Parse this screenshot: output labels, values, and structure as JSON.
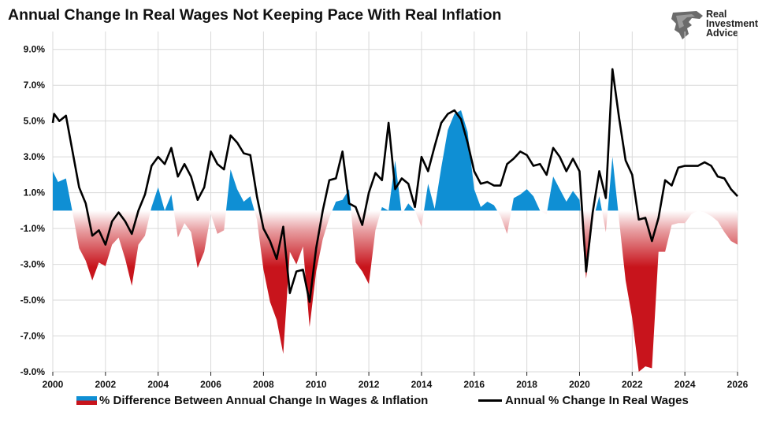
{
  "title": "Annual Change In Real Wages Not Keeping Pace With Real Inflation",
  "logo": {
    "lines": [
      "Real",
      "Investment",
      "Advice"
    ],
    "icon": "eagle-head-logo-icon"
  },
  "colors": {
    "positive_fill": "#0f8fd4",
    "negative_fill": "#c8141c",
    "line": "#000000",
    "grid": "#d9d9d9"
  },
  "legend": {
    "area_label": "% Difference Between Annual Change In Wages & Inflation",
    "line_label": "Annual % Change In Real Wages"
  },
  "chart_data": {
    "type": "area",
    "title": "Annual Change In Real Wages Not Keeping Pace With Real Inflation",
    "xlabel": "",
    "ylabel": "",
    "xlim": [
      2000,
      2026
    ],
    "ylim": [
      -9,
      10
    ],
    "grid": true,
    "legend_position": "bottom",
    "yticks": [
      "9.0%",
      "7.0%",
      "5.0%",
      "3.0%",
      "1.0%",
      "-1.0%",
      "-3.0%",
      "-5.0%",
      "-7.0%",
      "-9.0%"
    ],
    "ytick_values": [
      9,
      7,
      5,
      3,
      1,
      -1,
      -3,
      -5,
      -7,
      -9
    ],
    "xticks": [
      "2000",
      "2002",
      "2004",
      "2006",
      "2008",
      "2010",
      "2012",
      "2014",
      "2016",
      "2018",
      "2020",
      "2022",
      "2024",
      "2026"
    ],
    "xtick_values": [
      2000,
      2002,
      2004,
      2006,
      2008,
      2010,
      2012,
      2014,
      2016,
      2018,
      2020,
      2022,
      2024,
      2026
    ],
    "series": [
      {
        "name": "% Difference Between Annual Change In Wages & Inflation",
        "kind": "area",
        "x": [
          2000.0,
          2000.2,
          2000.5,
          2000.75,
          2001.0,
          2001.25,
          2001.5,
          2001.75,
          2002.0,
          2002.25,
          2002.5,
          2002.75,
          2003.0,
          2003.25,
          2003.5,
          2003.75,
          2004.0,
          2004.25,
          2004.5,
          2004.75,
          2005.0,
          2005.25,
          2005.5,
          2005.75,
          2006.0,
          2006.25,
          2006.5,
          2006.75,
          2007.0,
          2007.25,
          2007.5,
          2007.75,
          2008.0,
          2008.25,
          2008.5,
          2008.75,
          2009.0,
          2009.25,
          2009.5,
          2009.75,
          2010.0,
          2010.25,
          2010.5,
          2010.75,
          2011.0,
          2011.25,
          2011.5,
          2011.75,
          2012.0,
          2012.25,
          2012.5,
          2012.75,
          2013.0,
          2013.25,
          2013.5,
          2013.75,
          2014.0,
          2014.25,
          2014.5,
          2014.75,
          2015.0,
          2015.25,
          2015.5,
          2015.75,
          2016.0,
          2016.25,
          2016.5,
          2016.75,
          2017.0,
          2017.25,
          2017.5,
          2017.75,
          2018.0,
          2018.25,
          2018.5,
          2018.75,
          2019.0,
          2019.25,
          2019.5,
          2019.75,
          2020.0,
          2020.25,
          2020.5,
          2020.75,
          2021.0,
          2021.25,
          2021.5,
          2021.75,
          2022.0,
          2022.25,
          2022.5,
          2022.75,
          2023.0,
          2023.25,
          2023.5,
          2023.75,
          2024.0,
          2024.25,
          2024.5,
          2024.75,
          2025.0,
          2025.25,
          2025.5,
          2025.75,
          2026.0
        ],
        "y": [
          2.2,
          1.6,
          1.8,
          -0.1,
          -2.1,
          -2.8,
          -3.9,
          -2.9,
          -3.1,
          -1.9,
          -1.5,
          -2.7,
          -4.2,
          -1.9,
          -1.4,
          0.2,
          1.3,
          0.0,
          0.9,
          -1.5,
          -0.7,
          -1.2,
          -3.2,
          -2.3,
          -0.2,
          -1.3,
          -1.1,
          2.3,
          1.2,
          0.5,
          0.8,
          -0.5,
          -3.3,
          -5.1,
          -6.1,
          -8.0,
          -2.3,
          -3.0,
          -2.0,
          -6.5,
          -3.4,
          -1.6,
          -0.4,
          0.5,
          0.6,
          1.2,
          -2.9,
          -3.4,
          -4.1,
          -1.1,
          0.2,
          0.0,
          2.8,
          -0.2,
          0.4,
          0.0,
          -0.9,
          1.5,
          0.1,
          2.4,
          4.5,
          5.4,
          5.6,
          4.4,
          1.2,
          0.2,
          0.5,
          0.3,
          -0.3,
          -1.3,
          0.7,
          0.9,
          1.2,
          0.8,
          0.0,
          -0.2,
          1.9,
          1.2,
          0.5,
          1.1,
          0.6,
          -3.8,
          -0.6,
          0.8,
          -1.2,
          3.0,
          -0.5,
          -3.9,
          -6.0,
          -9.0,
          -8.7,
          -8.8,
          -2.3,
          -2.3,
          -0.8,
          -0.7,
          -0.7,
          -0.2,
          0.0,
          -0.1,
          -0.3,
          -0.6,
          -1.2,
          -1.7,
          -1.9
        ]
      },
      {
        "name": "Annual % Change In Real Wages",
        "kind": "line",
        "x": [
          2000.0,
          2000.05,
          2000.25,
          2000.5,
          2000.75,
          2001.0,
          2001.25,
          2001.5,
          2001.75,
          2002.0,
          2002.25,
          2002.5,
          2002.75,
          2003.0,
          2003.25,
          2003.5,
          2003.75,
          2004.0,
          2004.25,
          2004.5,
          2004.75,
          2005.0,
          2005.25,
          2005.5,
          2005.75,
          2006.0,
          2006.25,
          2006.5,
          2006.75,
          2007.0,
          2007.25,
          2007.5,
          2007.75,
          2008.0,
          2008.25,
          2008.5,
          2008.75,
          2009.0,
          2009.25,
          2009.5,
          2009.75,
          2010.0,
          2010.25,
          2010.5,
          2010.75,
          2011.0,
          2011.25,
          2011.5,
          2011.75,
          2012.0,
          2012.25,
          2012.5,
          2012.75,
          2013.0,
          2013.25,
          2013.5,
          2013.75,
          2014.0,
          2014.25,
          2014.5,
          2014.75,
          2015.0,
          2015.25,
          2015.5,
          2015.75,
          2016.0,
          2016.25,
          2016.5,
          2016.75,
          2017.0,
          2017.25,
          2017.5,
          2017.75,
          2018.0,
          2018.25,
          2018.5,
          2018.75,
          2019.0,
          2019.25,
          2019.5,
          2019.75,
          2020.0,
          2020.25,
          2020.5,
          2020.75,
          2021.0,
          2021.25,
          2021.5,
          2021.75,
          2022.0,
          2022.25,
          2022.5,
          2022.75,
          2023.0,
          2023.25,
          2023.5,
          2023.75,
          2024.0,
          2024.25,
          2024.5,
          2024.75,
          2025.0,
          2025.25,
          2025.5,
          2025.75,
          2026.0
        ],
        "y": [
          4.9,
          5.4,
          5.0,
          5.3,
          3.3,
          1.3,
          0.4,
          -1.4,
          -1.1,
          -1.9,
          -0.6,
          -0.1,
          -0.6,
          -1.3,
          0.0,
          0.9,
          2.5,
          3.0,
          2.6,
          3.5,
          1.9,
          2.6,
          1.9,
          0.6,
          1.3,
          3.3,
          2.6,
          2.3,
          4.2,
          3.8,
          3.2,
          3.1,
          0.8,
          -1.0,
          -1.7,
          -2.7,
          -0.9,
          -4.6,
          -3.4,
          -3.3,
          -5.1,
          -2.1,
          0.0,
          1.7,
          1.8,
          3.3,
          0.4,
          0.2,
          -0.8,
          1.0,
          2.1,
          1.7,
          4.9,
          1.2,
          1.8,
          1.5,
          0.2,
          3.0,
          2.2,
          3.6,
          4.9,
          5.4,
          5.6,
          5.1,
          3.8,
          2.2,
          1.5,
          1.6,
          1.4,
          1.4,
          2.6,
          2.9,
          3.3,
          3.1,
          2.5,
          2.6,
          2.0,
          3.5,
          3.0,
          2.2,
          2.9,
          2.2,
          -3.4,
          -0.1,
          2.2,
          0.7,
          7.9,
          5.2,
          2.8,
          2.0,
          -0.5,
          -0.4,
          -1.7,
          -0.4,
          1.7,
          1.4,
          2.4,
          2.5,
          2.5,
          2.5,
          2.7,
          2.5,
          1.9,
          1.8,
          1.2,
          0.8
        ]
      }
    ]
  }
}
